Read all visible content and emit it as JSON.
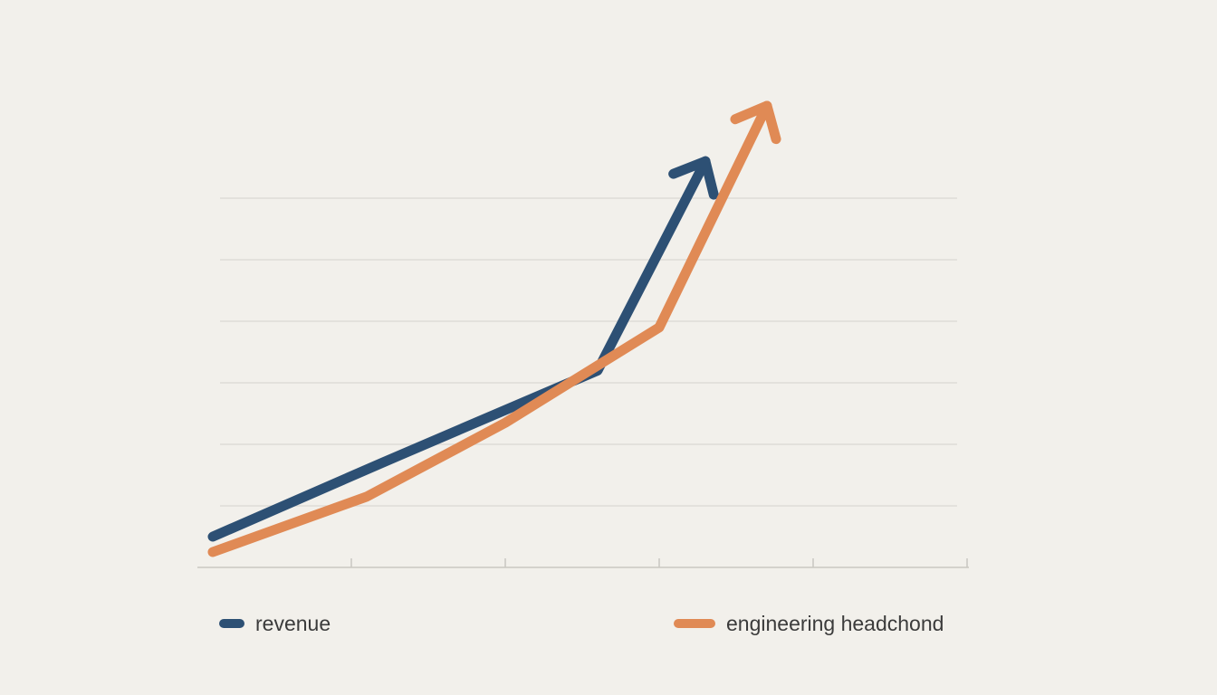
{
  "chart_data": {
    "type": "line",
    "title": "",
    "xlabel": "",
    "ylabel": "",
    "grid": true,
    "legend_position": "bottom",
    "xlim": [
      0,
      5
    ],
    "ylim": [
      0,
      6
    ],
    "ygrid_values": [
      1,
      2,
      3,
      4,
      5,
      6
    ],
    "xticks": [
      1,
      2,
      3,
      4,
      5
    ],
    "series": [
      {
        "name": "revenue",
        "color": "#2d5074",
        "x": [
          0.1,
          1.2,
          2.6,
          3.3
        ],
        "y": [
          0.5,
          1.7,
          3.2,
          6.6
        ],
        "arrow_end": true
      },
      {
        "name": "engineering headchond",
        "color": "#e08a55",
        "x": [
          0.1,
          1.1,
          2.0,
          3.0,
          3.7
        ],
        "y": [
          0.25,
          1.15,
          2.35,
          3.9,
          7.5
        ],
        "arrow_end": true
      }
    ],
    "colors": {
      "gridline": "#dedcd7",
      "axis": "#c9c7c2"
    }
  }
}
